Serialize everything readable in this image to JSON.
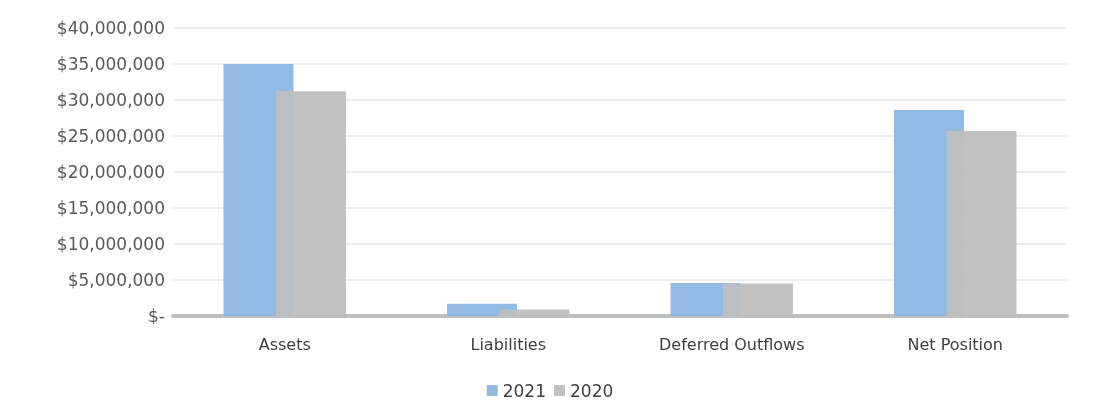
{
  "chart_data": {
    "type": "bar",
    "categories": [
      "Assets",
      "Liabilities",
      "Deferred Outflows",
      "Net Position"
    ],
    "series": [
      {
        "name": "2021",
        "color": "#8bb7e0",
        "values": [
          35000000,
          1700000,
          4600000,
          28600000
        ]
      },
      {
        "name": "2020",
        "color": "#bfbfbf",
        "values": [
          31200000,
          900000,
          4500000,
          25700000
        ]
      }
    ],
    "ylim": [
      0,
      40000000
    ],
    "yticks": [
      {
        "value": 0,
        "label": "$-"
      },
      {
        "value": 5000000,
        "label": "$5,000,000"
      },
      {
        "value": 10000000,
        "label": "$10,000,000"
      },
      {
        "value": 15000000,
        "label": "$15,000,000"
      },
      {
        "value": 20000000,
        "label": "$20,000,000"
      },
      {
        "value": 25000000,
        "label": "$25,000,000"
      },
      {
        "value": 30000000,
        "label": "$30,000,000"
      },
      {
        "value": 35000000,
        "label": "$35,000,000"
      },
      {
        "value": 40000000,
        "label": "$40,000,000"
      }
    ],
    "grid": "y",
    "legend": "bottom"
  }
}
